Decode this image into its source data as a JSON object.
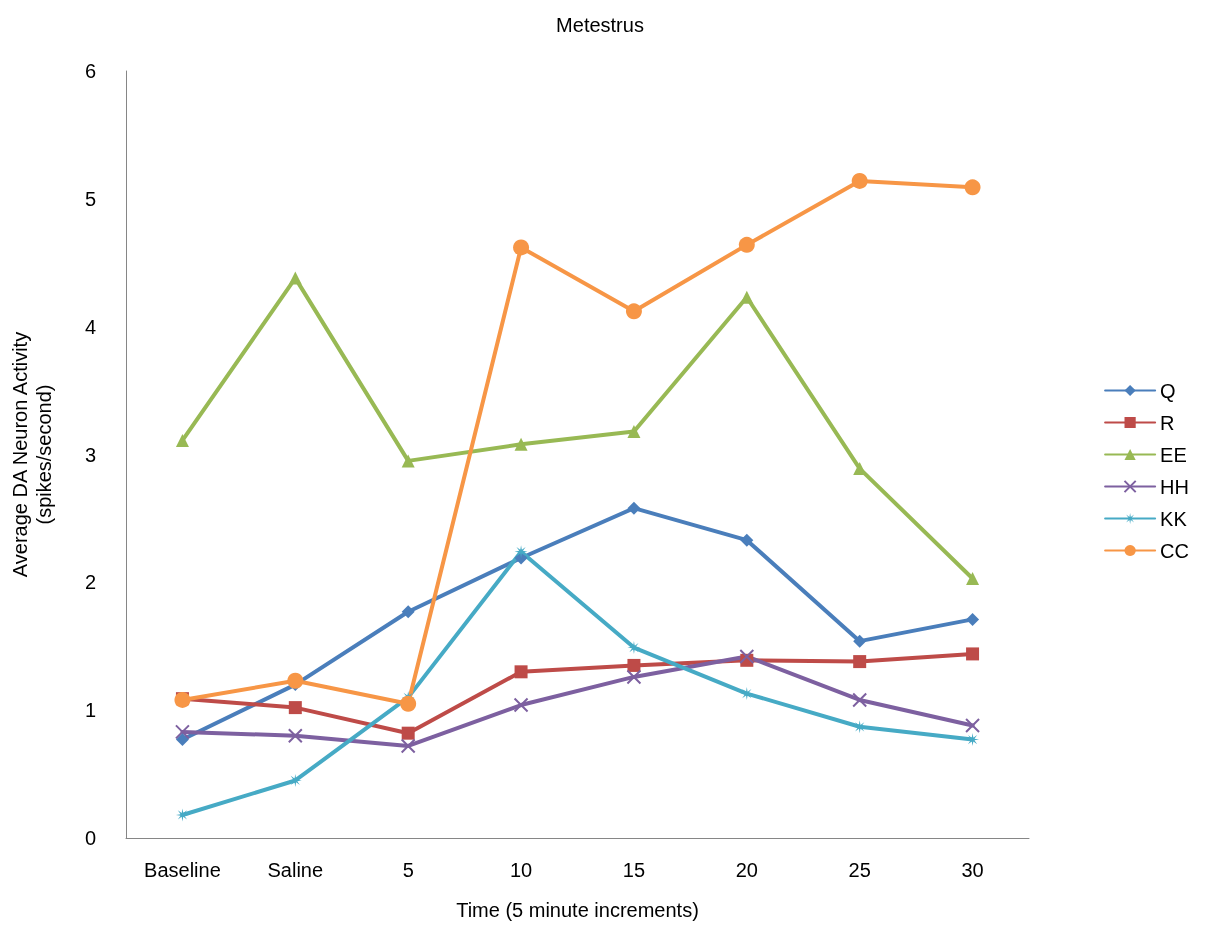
{
  "chart_data": {
    "type": "line",
    "title": "Metestrus",
    "xlabel": "Time (5 minute increments)",
    "ylabel": "Average DA Neuron Activity\n(spikes/second)",
    "categories": [
      "Baseline",
      "Saline",
      "5",
      "10",
      "15",
      "20",
      "25",
      "30"
    ],
    "ylim": [
      0,
      6
    ],
    "yticks": [
      0,
      1,
      2,
      3,
      4,
      5,
      6
    ],
    "grid": false,
    "legend": "right",
    "series": [
      {
        "name": "Q",
        "color": "#4a7ebb",
        "marker": "diamond",
        "values": [
          0.77,
          1.2,
          1.77,
          2.19,
          2.58,
          2.33,
          1.54,
          1.71
        ]
      },
      {
        "name": "R",
        "color": "#be4b48",
        "marker": "square",
        "values": [
          1.09,
          1.02,
          0.82,
          1.3,
          1.35,
          1.39,
          1.38,
          1.44
        ]
      },
      {
        "name": "EE",
        "color": "#98b954",
        "marker": "triangle",
        "values": [
          3.11,
          4.38,
          2.95,
          3.08,
          3.18,
          4.23,
          2.89,
          2.03
        ]
      },
      {
        "name": "HH",
        "color": "#7d60a0",
        "marker": "cross",
        "values": [
          0.83,
          0.8,
          0.72,
          1.04,
          1.26,
          1.42,
          1.08,
          0.88
        ]
      },
      {
        "name": "KK",
        "color": "#46aac5",
        "marker": "star",
        "values": [
          0.18,
          0.45,
          1.1,
          2.24,
          1.49,
          1.13,
          0.87,
          0.77
        ]
      },
      {
        "name": "CC",
        "color": "#f79646",
        "marker": "circle",
        "values": [
          1.08,
          1.23,
          1.05,
          4.62,
          4.12,
          4.64,
          5.14,
          5.09
        ]
      }
    ]
  }
}
